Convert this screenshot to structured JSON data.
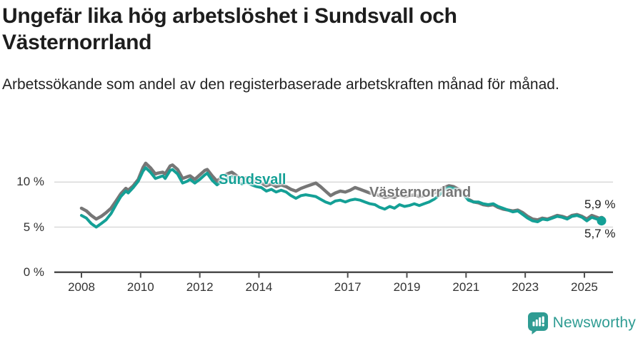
{
  "header": {
    "title": "Ungefär lika hög arbetslöshet i Sundsvall och Västernorrland",
    "subtitle": "Arbetssökande som andel av den registerbaserade arbetskraften månad för månad."
  },
  "footer": {
    "brand": "Newsworthy",
    "logo_icon": "newsworthy-speech-bubble-bar-chart-icon"
  },
  "colors": {
    "sundsvall": "#14a096",
    "vasternorrland": "#767676",
    "grid": "#d9d9d9",
    "axis": "#4d4d4d",
    "brand_teal": "#2f9c93"
  },
  "chart_data": {
    "type": "line",
    "title": "Ungefär lika hög arbetslöshet i Sundsvall och Västernorrland",
    "xlabel": "",
    "ylabel": "",
    "unit": "%",
    "grid": "horizontal",
    "legend_position": "inline-on-line",
    "xlim": [
      2007.6,
      2026.1
    ],
    "ylim": [
      0,
      13
    ],
    "x_ticks": [
      2008,
      2010,
      2012,
      2014,
      2017,
      2019,
      2021,
      2023,
      2025
    ],
    "y_ticks": [
      {
        "v": 0,
        "label": "0 %"
      },
      {
        "v": 5,
        "label": "5 %"
      },
      {
        "v": 10,
        "label": "10 %"
      }
    ],
    "series": [
      {
        "name": "Västernorrland",
        "color": "#767676",
        "end_label": "5,9 %",
        "end_value": 5.9,
        "points": [
          [
            2008.0,
            7.1
          ],
          [
            2008.17,
            6.8
          ],
          [
            2008.33,
            6.3
          ],
          [
            2008.5,
            5.9
          ],
          [
            2008.67,
            6.2
          ],
          [
            2008.83,
            6.6
          ],
          [
            2009.0,
            7.1
          ],
          [
            2009.17,
            7.9
          ],
          [
            2009.33,
            8.7
          ],
          [
            2009.5,
            9.3
          ],
          [
            2009.58,
            9.1
          ],
          [
            2009.75,
            9.6
          ],
          [
            2009.92,
            10.3
          ],
          [
            2010.08,
            11.6
          ],
          [
            2010.17,
            12.1
          ],
          [
            2010.33,
            11.6
          ],
          [
            2010.5,
            10.9
          ],
          [
            2010.58,
            11.0
          ],
          [
            2010.75,
            11.1
          ],
          [
            2010.83,
            10.9
          ],
          [
            2011.0,
            11.8
          ],
          [
            2011.08,
            11.9
          ],
          [
            2011.25,
            11.4
          ],
          [
            2011.42,
            10.4
          ],
          [
            2011.58,
            10.6
          ],
          [
            2011.67,
            10.7
          ],
          [
            2011.83,
            10.3
          ],
          [
            2012.0,
            10.8
          ],
          [
            2012.17,
            11.3
          ],
          [
            2012.25,
            11.4
          ],
          [
            2012.42,
            10.7
          ],
          [
            2012.58,
            10.1
          ],
          [
            2012.75,
            10.6
          ],
          [
            2012.92,
            10.9
          ],
          [
            2013.08,
            11.1
          ],
          [
            2013.25,
            10.7
          ],
          [
            2013.42,
            10.3
          ],
          [
            2013.58,
            10.5
          ],
          [
            2013.75,
            10.2
          ],
          [
            2013.92,
            10.0
          ],
          [
            2014.08,
            9.9
          ],
          [
            2014.25,
            9.6
          ],
          [
            2014.42,
            9.8
          ],
          [
            2014.58,
            9.5
          ],
          [
            2014.75,
            9.7
          ],
          [
            2014.92,
            9.5
          ],
          [
            2015.08,
            9.2
          ],
          [
            2015.25,
            9.0
          ],
          [
            2015.42,
            9.3
          ],
          [
            2015.58,
            9.5
          ],
          [
            2015.75,
            9.7
          ],
          [
            2015.92,
            9.9
          ],
          [
            2016.08,
            9.5
          ],
          [
            2016.25,
            9.0
          ],
          [
            2016.42,
            8.5
          ],
          [
            2016.58,
            8.8
          ],
          [
            2016.75,
            9.0
          ],
          [
            2016.92,
            8.9
          ],
          [
            2017.08,
            9.1
          ],
          [
            2017.25,
            9.4
          ],
          [
            2017.42,
            9.2
          ],
          [
            2017.58,
            9.0
          ],
          [
            2017.75,
            8.8
          ],
          [
            2017.92,
            8.7
          ],
          [
            2018.08,
            8.5
          ],
          [
            2018.25,
            8.3
          ],
          [
            2018.42,
            8.4
          ],
          [
            2018.58,
            8.3
          ],
          [
            2018.75,
            8.6
          ],
          [
            2018.92,
            8.4
          ],
          [
            2019.08,
            8.5
          ],
          [
            2019.25,
            8.6
          ],
          [
            2019.42,
            8.4
          ],
          [
            2019.58,
            8.5
          ],
          [
            2019.75,
            8.6
          ],
          [
            2019.92,
            8.8
          ],
          [
            2020.08,
            9.0
          ],
          [
            2020.25,
            9.4
          ],
          [
            2020.42,
            9.6
          ],
          [
            2020.58,
            9.5
          ],
          [
            2020.75,
            9.2
          ],
          [
            2020.92,
            8.8
          ],
          [
            2021.08,
            8.1
          ],
          [
            2021.25,
            7.8
          ],
          [
            2021.42,
            7.7
          ],
          [
            2021.58,
            7.5
          ],
          [
            2021.75,
            7.4
          ],
          [
            2021.92,
            7.5
          ],
          [
            2022.08,
            7.2
          ],
          [
            2022.25,
            7.0
          ],
          [
            2022.42,
            6.9
          ],
          [
            2022.58,
            6.8
          ],
          [
            2022.75,
            6.9
          ],
          [
            2022.92,
            6.6
          ],
          [
            2023.08,
            6.2
          ],
          [
            2023.25,
            5.9
          ],
          [
            2023.42,
            5.8
          ],
          [
            2023.58,
            6.0
          ],
          [
            2023.75,
            5.9
          ],
          [
            2023.92,
            6.1
          ],
          [
            2024.08,
            6.3
          ],
          [
            2024.25,
            6.2
          ],
          [
            2024.42,
            6.0
          ],
          [
            2024.58,
            6.3
          ],
          [
            2024.75,
            6.4
          ],
          [
            2024.92,
            6.2
          ],
          [
            2025.08,
            5.9
          ],
          [
            2025.25,
            6.3
          ],
          [
            2025.42,
            6.1
          ],
          [
            2025.58,
            5.9
          ]
        ]
      },
      {
        "name": "Sundsvall",
        "color": "#14a096",
        "end_label": "5,7 %",
        "end_value": 5.7,
        "points": [
          [
            2008.0,
            6.3
          ],
          [
            2008.17,
            6.0
          ],
          [
            2008.33,
            5.4
          ],
          [
            2008.5,
            5.0
          ],
          [
            2008.67,
            5.4
          ],
          [
            2008.83,
            5.8
          ],
          [
            2009.0,
            6.5
          ],
          [
            2009.17,
            7.5
          ],
          [
            2009.33,
            8.4
          ],
          [
            2009.5,
            9.0
          ],
          [
            2009.58,
            8.8
          ],
          [
            2009.75,
            9.4
          ],
          [
            2009.92,
            10.1
          ],
          [
            2010.08,
            11.2
          ],
          [
            2010.17,
            11.6
          ],
          [
            2010.33,
            11.1
          ],
          [
            2010.5,
            10.4
          ],
          [
            2010.58,
            10.5
          ],
          [
            2010.75,
            10.7
          ],
          [
            2010.83,
            10.4
          ],
          [
            2011.0,
            11.3
          ],
          [
            2011.08,
            11.4
          ],
          [
            2011.25,
            10.9
          ],
          [
            2011.42,
            9.9
          ],
          [
            2011.58,
            10.1
          ],
          [
            2011.67,
            10.3
          ],
          [
            2011.83,
            9.9
          ],
          [
            2012.0,
            10.3
          ],
          [
            2012.17,
            10.8
          ],
          [
            2012.25,
            11.0
          ],
          [
            2012.42,
            10.2
          ],
          [
            2012.58,
            9.7
          ],
          [
            2012.75,
            10.1
          ],
          [
            2012.92,
            10.4
          ],
          [
            2013.08,
            10.6
          ],
          [
            2013.25,
            10.2
          ],
          [
            2013.42,
            9.8
          ],
          [
            2013.58,
            10.0
          ],
          [
            2013.75,
            9.7
          ],
          [
            2013.92,
            9.5
          ],
          [
            2014.08,
            9.4
          ],
          [
            2014.25,
            9.0
          ],
          [
            2014.42,
            9.2
          ],
          [
            2014.58,
            8.9
          ],
          [
            2014.75,
            9.1
          ],
          [
            2014.92,
            8.9
          ],
          [
            2015.08,
            8.5
          ],
          [
            2015.25,
            8.2
          ],
          [
            2015.42,
            8.5
          ],
          [
            2015.58,
            8.6
          ],
          [
            2015.75,
            8.5
          ],
          [
            2015.92,
            8.4
          ],
          [
            2016.08,
            8.1
          ],
          [
            2016.25,
            7.8
          ],
          [
            2016.42,
            7.6
          ],
          [
            2016.58,
            7.9
          ],
          [
            2016.75,
            8.0
          ],
          [
            2016.92,
            7.8
          ],
          [
            2017.08,
            8.0
          ],
          [
            2017.25,
            8.1
          ],
          [
            2017.42,
            8.0
          ],
          [
            2017.58,
            7.8
          ],
          [
            2017.75,
            7.6
          ],
          [
            2017.92,
            7.5
          ],
          [
            2018.08,
            7.2
          ],
          [
            2018.25,
            7.0
          ],
          [
            2018.42,
            7.3
          ],
          [
            2018.58,
            7.1
          ],
          [
            2018.75,
            7.5
          ],
          [
            2018.92,
            7.3
          ],
          [
            2019.08,
            7.4
          ],
          [
            2019.25,
            7.6
          ],
          [
            2019.42,
            7.4
          ],
          [
            2019.58,
            7.6
          ],
          [
            2019.75,
            7.8
          ],
          [
            2019.92,
            8.1
          ],
          [
            2020.08,
            8.5
          ],
          [
            2020.25,
            9.1
          ],
          [
            2020.42,
            9.4
          ],
          [
            2020.58,
            9.3
          ],
          [
            2020.75,
            9.0
          ],
          [
            2020.92,
            8.6
          ],
          [
            2021.08,
            8.0
          ],
          [
            2021.25,
            7.8
          ],
          [
            2021.42,
            7.8
          ],
          [
            2021.58,
            7.6
          ],
          [
            2021.75,
            7.5
          ],
          [
            2021.92,
            7.6
          ],
          [
            2022.08,
            7.3
          ],
          [
            2022.25,
            7.1
          ],
          [
            2022.42,
            6.9
          ],
          [
            2022.58,
            6.7
          ],
          [
            2022.75,
            6.8
          ],
          [
            2022.92,
            6.4
          ],
          [
            2023.08,
            6.0
          ],
          [
            2023.25,
            5.7
          ],
          [
            2023.42,
            5.6
          ],
          [
            2023.58,
            5.9
          ],
          [
            2023.75,
            5.8
          ],
          [
            2023.92,
            6.0
          ],
          [
            2024.08,
            6.2
          ],
          [
            2024.25,
            6.1
          ],
          [
            2024.42,
            5.9
          ],
          [
            2024.58,
            6.2
          ],
          [
            2024.75,
            6.3
          ],
          [
            2024.92,
            6.1
          ],
          [
            2025.08,
            5.7
          ],
          [
            2025.25,
            6.1
          ],
          [
            2025.42,
            5.9
          ],
          [
            2025.58,
            5.7
          ]
        ]
      }
    ]
  }
}
